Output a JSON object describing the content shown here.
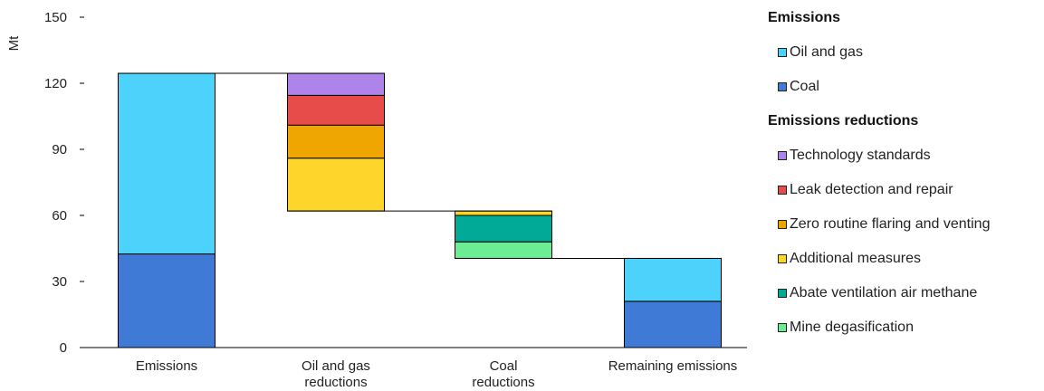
{
  "chart_data": {
    "type": "bar",
    "subtype": "waterfall",
    "ylabel": "Mt",
    "ylim": [
      0,
      150
    ],
    "yticks": [
      0,
      30,
      60,
      90,
      120,
      150
    ],
    "grid": false,
    "legend_position": "right",
    "categories": [
      {
        "lines": [
          "Emissions"
        ]
      },
      {
        "lines": [
          "Oil and gas",
          "reductions"
        ]
      },
      {
        "lines": [
          "Coal",
          "reductions"
        ]
      },
      {
        "lines": [
          "Remaining emissions"
        ]
      }
    ],
    "bars": [
      {
        "category": 0,
        "segments": [
          {
            "series": "Coal",
            "from": 0,
            "to": 42.5
          },
          {
            "series": "Oil and gas",
            "from": 42.5,
            "to": 124.5
          }
        ]
      },
      {
        "category": 1,
        "segments": [
          {
            "series": "Additional measures",
            "from": 62,
            "to": 86
          },
          {
            "series": "Zero routine flaring and venting",
            "from": 86,
            "to": 101
          },
          {
            "series": "Leak detection and repair",
            "from": 101,
            "to": 114.5
          },
          {
            "series": "Technology standards",
            "from": 114.5,
            "to": 124.5
          }
        ]
      },
      {
        "category": 2,
        "segments": [
          {
            "series": "Mine degasification",
            "from": 40.5,
            "to": 48
          },
          {
            "series": "Abate ventilation air methane",
            "from": 48,
            "to": 60
          },
          {
            "series": "Additional measures",
            "from": 60,
            "to": 62
          }
        ]
      },
      {
        "category": 3,
        "segments": [
          {
            "series": "Coal",
            "from": 0,
            "to": 21
          },
          {
            "series": "Oil and gas",
            "from": 21,
            "to": 40.5
          }
        ]
      }
    ],
    "connectors": [
      {
        "from_category": 0,
        "to_category": 1,
        "y": 124.5
      },
      {
        "from_category": 1,
        "to_category": 2,
        "y": 62
      },
      {
        "from_category": 2,
        "to_category": 3,
        "y": 40.5
      }
    ],
    "series_colors": {
      "Oil and gas": "#4dd2fc",
      "Coal": "#3f7ad6",
      "Technology standards": "#ae84eb",
      "Leak detection and repair": "#e84c4a",
      "Zero routine flaring and venting": "#f0a600",
      "Additional measures": "#fdd52b",
      "Abate ventilation air methane": "#00aa96",
      "Mine degasification": "#6ced94"
    }
  },
  "legend": {
    "groups": [
      {
        "heading": "Emissions",
        "items": [
          "Oil and gas",
          "Coal"
        ]
      },
      {
        "heading": "Emissions reductions",
        "items": [
          "Technology standards",
          "Leak detection and repair",
          "Zero routine flaring and venting",
          "Additional measures",
          "Abate ventilation air methane",
          "Mine degasification"
        ]
      }
    ]
  }
}
